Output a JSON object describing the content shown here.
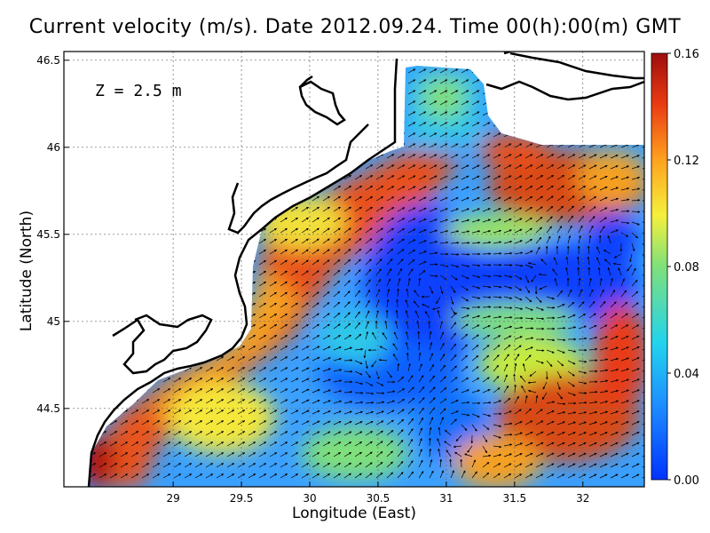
{
  "title": "Current velocity (m/s). Date 2012.09.24. Time 00(h):00(m) GMT",
  "depth_label": "Z = 2.5 m",
  "chart_data": {
    "type": "heatmap",
    "xlabel": "Longitude (East)",
    "ylabel": "Latitude (North)",
    "xlim": [
      28.2,
      32.45
    ],
    "ylim": [
      44.05,
      46.55
    ],
    "x_ticks": [
      "29",
      "29.5",
      "30",
      "30.5",
      "31",
      "31.5",
      "32"
    ],
    "y_ticks": [
      "44.5",
      "45",
      "45.5",
      "46",
      "46.5"
    ],
    "colorbar": {
      "min": 0.0,
      "max": 0.16,
      "ticks": [
        "0.00",
        "0.04",
        "0.08",
        "0.12",
        "0.16"
      ]
    },
    "grid": true
  }
}
